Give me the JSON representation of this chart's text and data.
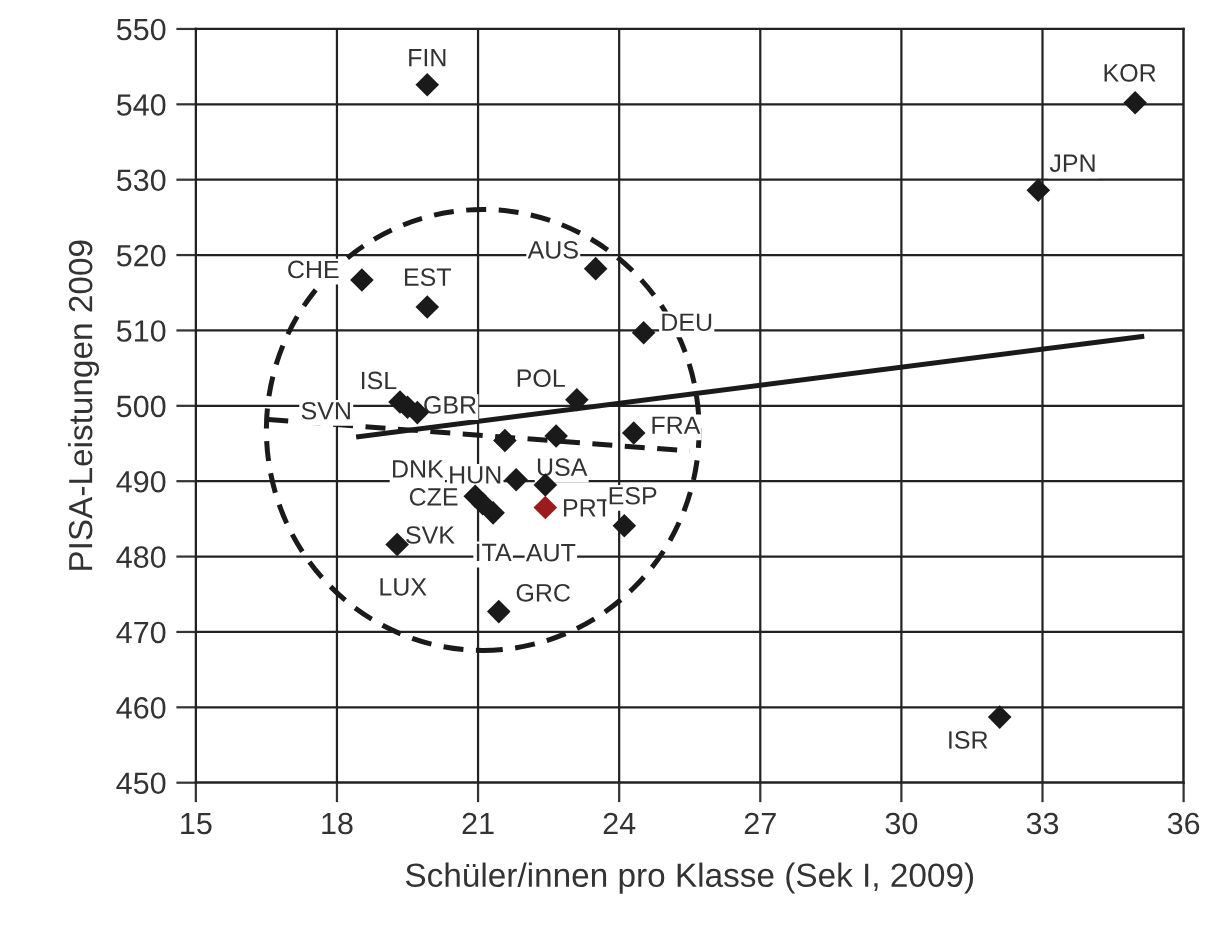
{
  "chart_data": {
    "type": "scatter",
    "xlabel": "Schüler/innen pro Klasse (Sek I, 2009)",
    "ylabel": "PISA-Leistungen 2009",
    "xlim": [
      15,
      36
    ],
    "xticks": [
      15,
      18,
      21,
      24,
      27,
      30,
      33,
      36
    ],
    "ylim": [
      450,
      550
    ],
    "yticks": [
      450,
      460,
      470,
      480,
      490,
      500,
      510,
      520,
      530,
      540,
      550
    ],
    "grid": true,
    "marker": "diamond",
    "series": [
      {
        "type": "scatter",
        "x": [
          19.92,
          18.53,
          19.92,
          23.5,
          24.52,
          19.34,
          19.71,
          19.5,
          23.1,
          21.57,
          24.31,
          21.81,
          22.66,
          22.43,
          20.94,
          21.1,
          21.32,
          22.43,
          24.11,
          19.28,
          21.44,
          34.97,
          32.91,
          32.09
        ],
        "values": [
          542.6,
          516.7,
          513.1,
          518.2,
          509.7,
          500.5,
          499.1,
          499.8,
          500.8,
          495.4,
          496.4,
          490.2,
          496.0,
          489.5,
          488.0,
          487.0,
          485.8,
          486.5,
          484.1,
          481.6,
          472.7,
          540.2,
          528.6,
          458.7
        ],
        "colors": [
          "#1a1a1a",
          "#1a1a1a",
          "#1a1a1a",
          "#1a1a1a",
          "#1a1a1a",
          "#1a1a1a",
          "#1a1a1a",
          "#1a1a1a",
          "#1a1a1a",
          "#1a1a1a",
          "#1a1a1a",
          "#1a1a1a",
          "#1a1a1a",
          "#1a1a1a",
          "#1a1a1a",
          "#1a1a1a",
          "#1a1a1a",
          "#9b1b1e",
          "#1a1a1a",
          "#1a1a1a",
          "#1a1a1a",
          "#1a1a1a",
          "#1a1a1a",
          "#1a1a1a"
        ]
      },
      {
        "type": "line",
        "x": [
          18.46,
          35.11
        ],
        "values": [
          495.9,
          509.2
        ],
        "color": "#1a1a1a",
        "line_style": "solid",
        "marker": "none"
      },
      {
        "type": "line",
        "x": [
          16.54,
          25.5
        ],
        "values": [
          498.2,
          494.0
        ],
        "color": "#1a1a1a",
        "line_style": "dashed",
        "marker": "none"
      }
    ],
    "annotations": [
      {
        "text": "FIN",
        "x": 19.92,
        "y": 542.6
      },
      {
        "text": "CHE",
        "x": 18.53,
        "y": 516.7
      },
      {
        "text": "EST",
        "x": 19.92,
        "y": 513.1
      },
      {
        "text": "AUS",
        "x": 23.5,
        "y": 518.2
      },
      {
        "text": "DEU",
        "x": 24.52,
        "y": 509.7
      },
      {
        "text": "ISL",
        "x": 19.34,
        "y": 500.5
      },
      {
        "text": "GBR",
        "x": 19.71,
        "y": 499.1
      },
      {
        "text": "SVN",
        "x": 19.5,
        "y": 499.8
      },
      {
        "text": "POL",
        "x": 23.1,
        "y": 500.8
      },
      {
        "text": "DNK",
        "x": 21.57,
        "y": 495.4
      },
      {
        "text": "FRA",
        "x": 24.31,
        "y": 496.4
      },
      {
        "text": "HUN",
        "x": 21.81,
        "y": 490.2
      },
      {
        "text": "USA",
        "x": 22.66,
        "y": 496.0
      },
      {
        "text": "PRT",
        "x": 22.43,
        "y": 489.5
      },
      {
        "text": "CZE",
        "x": 20.94,
        "y": 488.0
      },
      {
        "text": "SVK",
        "x": 21.1,
        "y": 487.0
      },
      {
        "text": "ITA",
        "x": 21.32,
        "y": 485.8
      },
      {
        "text": "AUT",
        "x": 22.43,
        "y": 486.5
      },
      {
        "text": "ESP",
        "x": 24.11,
        "y": 484.1
      },
      {
        "text": "LUX",
        "x": 19.28,
        "y": 481.6
      },
      {
        "text": "GRC",
        "x": 21.44,
        "y": 472.7
      },
      {
        "text": "KOR",
        "x": 34.97,
        "y": 540.2
      },
      {
        "text": "JPN",
        "x": 32.91,
        "y": 528.6
      },
      {
        "text": "ISR",
        "x": 32.09,
        "y": 458.7
      }
    ]
  }
}
